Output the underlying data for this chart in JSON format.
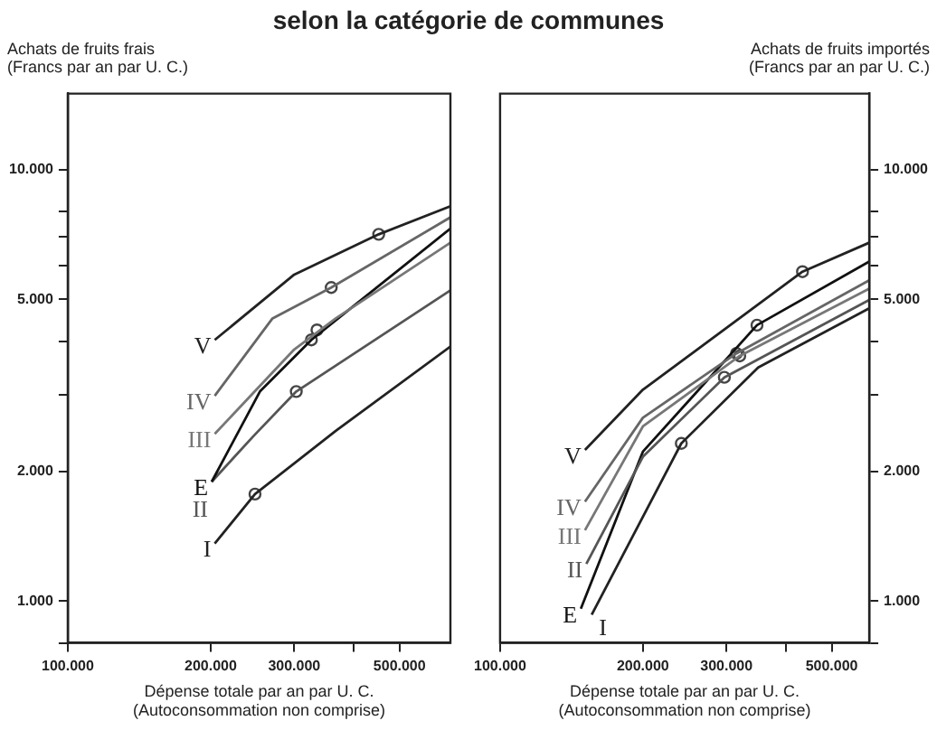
{
  "chart_data": [
    {
      "type": "line",
      "title": "selon la catégorie de communes",
      "ylabel": "Achats de fruits frais\n(Francs par an par U. C.)",
      "xlabel": "Dépense totale par an par U. C.\n(Autoconsommation non comprise)",
      "log": "xy",
      "grid": false,
      "legend": false,
      "marker": "none",
      "line_style": "solid",
      "xlim": [
        100000,
        640000
      ],
      "xticks": [
        {
          "value": 100000,
          "label": "100.000"
        },
        {
          "value": 200000,
          "label": "200.000"
        },
        {
          "value": 300000,
          "label": "300.000"
        },
        {
          "value": 400000,
          "label": null
        },
        {
          "value": 500000,
          "label": "500.000"
        }
      ],
      "ylim": [
        800,
        15000
      ],
      "yticks": [
        {
          "value": 800,
          "label": null
        },
        {
          "value": 1000,
          "label": "1.000"
        },
        {
          "value": 2000,
          "label": "2.000"
        },
        {
          "value": 3000,
          "label": null
        },
        {
          "value": 4000,
          "label": null
        },
        {
          "value": 5000,
          "label": "5.000"
        },
        {
          "value": 6000,
          "label": null
        },
        {
          "value": 7000,
          "label": null
        },
        {
          "value": 8000,
          "label": null
        },
        {
          "value": 10000,
          "label": "10.000"
        }
      ],
      "series": [
        {
          "name": "V",
          "color": "#222222",
          "x": [
            204000,
            300000,
            452000,
            640000
          ],
          "values": [
            4030,
            5710,
            7080,
            8220
          ]
        },
        {
          "name": "IV",
          "color": "#666666",
          "x": [
            204000,
            270000,
            359000,
            640000
          ],
          "values": [
            2990,
            4520,
            5330,
            7750
          ]
        },
        {
          "name": "III",
          "color": "#777777",
          "x": [
            204000,
            300000,
            367000,
            640000
          ],
          "values": [
            2440,
            3830,
            4520,
            6770
          ]
        },
        {
          "name": "E",
          "color": "#111111",
          "x": [
            201000,
            254000,
            326000,
            640000
          ],
          "values": [
            1890,
            3060,
            4030,
            7300
          ]
        },
        {
          "name": "II",
          "color": "#555555",
          "x": [
            201000,
            246000,
            303000,
            640000
          ],
          "values": [
            1890,
            2410,
            3060,
            5250
          ]
        },
        {
          "name": "I",
          "color": "#222222",
          "x": [
            204000,
            248000,
            367000,
            640000
          ],
          "values": [
            1360,
            1770,
            2480,
            3890
          ]
        },
        {
          "type": "scatter",
          "marker": "circle",
          "color": "#444444",
          "x": [
            452000,
            359000,
            335000,
            326000,
            303000,
            248000
          ],
          "values": [
            7080,
            5330,
            4250,
            4030,
            3060,
            1770
          ]
        }
      ]
    },
    {
      "type": "line",
      "ylabel": "Achats de fruits importés\n(Francs par an par U. C.)",
      "xlabel": "Dépense totale par an par U. C.\n(Autoconsommation non comprise)",
      "log": "xy",
      "grid": false,
      "legend": false,
      "marker": "none",
      "line_style": "solid",
      "xlim": [
        100000,
        600000
      ],
      "xticks": [
        {
          "value": 100000,
          "label": "100.000"
        },
        {
          "value": 200000,
          "label": "200.000"
        },
        {
          "value": 300000,
          "label": "300.000"
        },
        {
          "value": 400000,
          "label": null
        },
        {
          "value": 500000,
          "label": "500.000"
        }
      ],
      "ylim": [
        800,
        15000
      ],
      "yticks": [
        {
          "value": 800,
          "label": null
        },
        {
          "value": 1000,
          "label": "1.000"
        },
        {
          "value": 2000,
          "label": "2.000"
        },
        {
          "value": 3000,
          "label": null
        },
        {
          "value": 4000,
          "label": null
        },
        {
          "value": 5000,
          "label": "5.000"
        },
        {
          "value": 6000,
          "label": null
        },
        {
          "value": 7000,
          "label": null
        },
        {
          "value": 8000,
          "label": null
        },
        {
          "value": 10000,
          "label": "10.000"
        }
      ],
      "series": [
        {
          "name": "V",
          "color": "#222222",
          "x": [
            151000,
            200000,
            434000,
            600000
          ],
          "values": [
            2240,
            3090,
            5800,
            6770
          ]
        },
        {
          "name": "IV",
          "color": "#666666",
          "x": [
            151000,
            200000,
            315000,
            600000
          ],
          "values": [
            1700,
            2660,
            3750,
            5540
          ]
        },
        {
          "name": "III",
          "color": "#777777",
          "x": [
            151000,
            200000,
            320000,
            600000
          ],
          "values": [
            1460,
            2540,
            3700,
            5300
          ]
        },
        {
          "name": "II",
          "color": "#555555",
          "x": [
            152000,
            200000,
            297000,
            600000
          ],
          "values": [
            1220,
            2160,
            3300,
            4990
          ]
        },
        {
          "name": "E",
          "color": "#111111",
          "x": [
            148000,
            200000,
            348000,
            600000
          ],
          "values": [
            960,
            2220,
            4360,
            6120
          ]
        },
        {
          "name": "I",
          "color": "#222222",
          "x": [
            156000,
            241000,
            350000,
            600000
          ],
          "values": [
            930,
            2320,
            3480,
            4770
          ]
        },
        {
          "type": "scatter",
          "marker": "circle",
          "color": "#444444",
          "x": [
            434000,
            348000,
            320000,
            315000,
            297000,
            241000
          ],
          "values": [
            5800,
            4360,
            3700,
            3750,
            3300,
            2320
          ]
        }
      ]
    }
  ]
}
